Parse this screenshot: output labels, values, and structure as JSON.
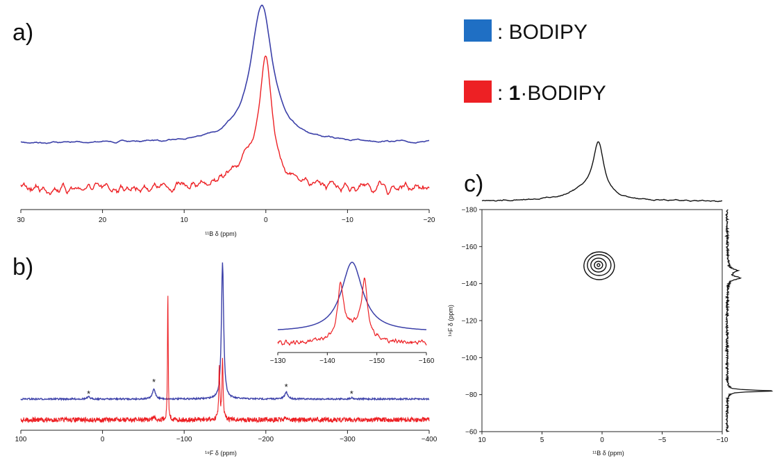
{
  "legend": [
    {
      "prefix": ": ",
      "bold": "",
      "text": "BODIPY",
      "color": "#1f6fc4"
    },
    {
      "prefix": ": ",
      "bold": "1",
      "text": "·BODIPY",
      "color": "#ed2024"
    }
  ],
  "chart_data": [
    {
      "panel": "a)",
      "type": "line",
      "xlabel": "¹¹B δ (ppm)",
      "xlim": [
        30,
        -20
      ],
      "xticks": [
        30,
        20,
        10,
        0,
        -10,
        -20
      ],
      "xtick_labels": [
        "30",
        "20",
        "10",
        "0",
        "−10",
        "−20"
      ],
      "series": [
        {
          "color": "#3a3fa8",
          "peak_ppm": 0.5,
          "width_ppm": 1.6
        },
        {
          "color": "#ed2024",
          "peak_ppm": 0.0,
          "width_ppm": 0.9
        }
      ]
    },
    {
      "panel": "b)",
      "type": "line",
      "xlabel": "¹⁹F δ (ppm)",
      "xlim": [
        100,
        -400
      ],
      "xticks": [
        100,
        0,
        -100,
        -200,
        -300,
        -400
      ],
      "xtick_labels": [
        "100",
        "0",
        "−100",
        "−200",
        "−300",
        "−400"
      ],
      "series": [
        {
          "color": "#3a3fa8",
          "peaks_ppm": [
            -147,
            -63,
            -225,
            17,
            -305
          ]
        },
        {
          "color": "#ed2024",
          "peaks_ppm": [
            -80,
            -143,
            -147
          ]
        }
      ],
      "annotations": [
        {
          "text": "*",
          "x": 17
        },
        {
          "text": "*",
          "x": -63
        },
        {
          "text": "*",
          "x": -225
        },
        {
          "text": "*",
          "x": -305
        }
      ],
      "inset": {
        "xlim": [
          -130,
          -160
        ],
        "xticks": [
          -130,
          -140,
          -150,
          -160
        ],
        "xtick_labels": [
          "−130",
          "−140",
          "−150",
          "−160"
        ]
      }
    },
    {
      "panel": "c)",
      "type": "contour",
      "xlabel": "¹¹B δ (ppm)",
      "ylabel": "¹⁹F δ (ppm)",
      "xlim": [
        10,
        -10
      ],
      "ylim": [
        -180,
        -60
      ],
      "xticks": [
        10,
        5,
        0,
        -5,
        -10
      ],
      "xtick_labels": [
        "10",
        "5",
        "0",
        "−5",
        "−10"
      ],
      "yticks": [
        -180,
        -160,
        -140,
        -120,
        -100,
        -80,
        -60
      ],
      "ytick_labels": [
        "−180",
        "−160",
        "−140",
        "−120",
        "−100",
        "−80",
        "−60"
      ],
      "contour_center": {
        "x": 0.3,
        "y": -150
      },
      "f1_projection_peaks": [
        -143,
        -147,
        -82
      ],
      "b_projection_peak": 0.3
    }
  ]
}
